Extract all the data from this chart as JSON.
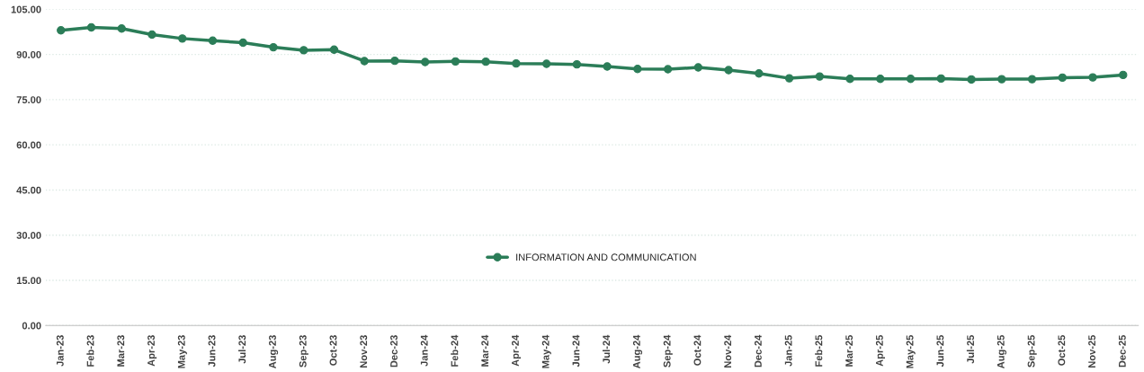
{
  "chart_data": {
    "type": "line",
    "categories": [
      "Jan-23",
      "Feb-23",
      "Mar-23",
      "Apr-23",
      "May-23",
      "Jun-23",
      "Jul-23",
      "Aug-23",
      "Sep-23",
      "Oct-23",
      "Nov-23",
      "Dec-23",
      "Jan-24",
      "Feb-24",
      "Mar-24",
      "Apr-24",
      "May-24",
      "Jun-24",
      "Jul-24",
      "Aug-24",
      "Sep-24",
      "Oct-24",
      "Nov-24",
      "Dec-24",
      "Jan-25",
      "Feb-25",
      "Mar-25",
      "Apr-25",
      "May-25",
      "Jun-25",
      "Jul-25",
      "Aug-25",
      "Sep-25",
      "Oct-25",
      "Nov-25",
      "Dec-25"
    ],
    "series": [
      {
        "name": "INFORMATION AND COMMUNICATION",
        "color": "#2b7d58",
        "values": [
          98.0,
          99.0,
          98.6,
          96.6,
          95.3,
          94.6,
          93.9,
          92.4,
          91.4,
          91.6,
          87.8,
          87.9,
          87.5,
          87.7,
          87.6,
          87.0,
          86.9,
          86.7,
          86.0,
          85.2,
          85.1,
          85.7,
          84.8,
          83.7,
          82.1,
          82.7,
          81.9,
          81.9,
          81.9,
          82.0,
          81.7,
          81.8,
          81.8,
          82.3,
          82.4,
          83.2
        ]
      }
    ],
    "ylim": [
      0,
      105
    ],
    "yticks": [
      {
        "value": 0,
        "label": "0.00"
      },
      {
        "value": 15,
        "label": "15.00"
      },
      {
        "value": 30,
        "label": "30.00"
      },
      {
        "value": 45,
        "label": "45.00"
      },
      {
        "value": 60,
        "label": "60.00"
      },
      {
        "value": 75,
        "label": "75.00"
      },
      {
        "value": 90,
        "label": "90.00"
      },
      {
        "value": 105,
        "label": "105.00"
      }
    ],
    "grid": "y",
    "legend": "bottom",
    "marker": "circle",
    "line_style": "solid"
  }
}
